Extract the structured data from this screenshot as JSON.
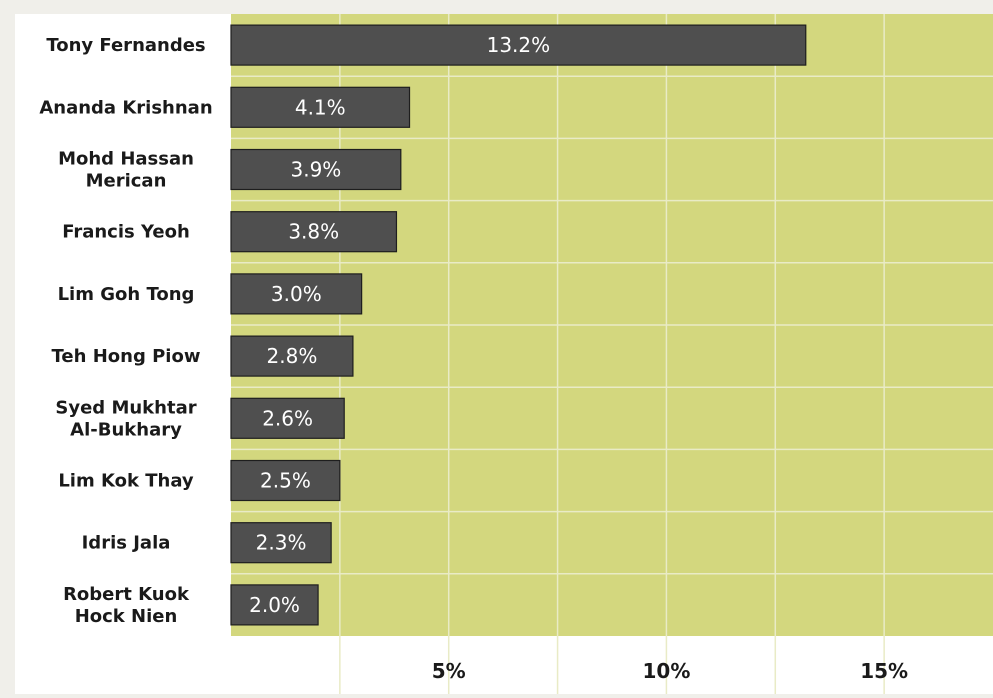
{
  "chart_data": {
    "type": "bar",
    "orientation": "horizontal",
    "categories": [
      [
        "Tony Fernandes"
      ],
      [
        "Ananda Krishnan"
      ],
      [
        "Mohd Hassan",
        "Merican"
      ],
      [
        "Francis Yeoh"
      ],
      [
        "Lim Goh Tong"
      ],
      [
        "Teh Hong Piow"
      ],
      [
        "Syed Mukhtar",
        "Al-Bukhary"
      ],
      [
        "Lim Kok Thay"
      ],
      [
        "Idris Jala"
      ],
      [
        "Robert Kuok",
        "Hock Nien"
      ]
    ],
    "values": [
      13.2,
      4.1,
      3.9,
      3.8,
      3.0,
      2.8,
      2.6,
      2.5,
      2.3,
      2.0
    ],
    "data_labels": [
      "13.2%",
      "4.1%",
      "3.9%",
      "3.8%",
      "3.0%",
      "2.8%",
      "2.6%",
      "2.5%",
      "2.3%",
      "2.0%"
    ],
    "xlim": [
      0,
      17.5
    ],
    "gridlines": [
      2.5,
      5,
      7.5,
      10,
      12.5,
      15
    ],
    "ticks": [
      5,
      10,
      15
    ],
    "tick_labels": [
      "5%",
      "10%",
      "15%"
    ],
    "title": "",
    "xlabel": "",
    "ylabel": "",
    "grid": true,
    "colors": {
      "plot_background": "#d3d77e",
      "bar": "#4f4f4f",
      "bar_outline": "#1e1e1e",
      "bar_text": "#ffffff",
      "label_panel": "#ffffff",
      "grid": "#e9ebc6",
      "page_background": "#f0efea"
    }
  }
}
